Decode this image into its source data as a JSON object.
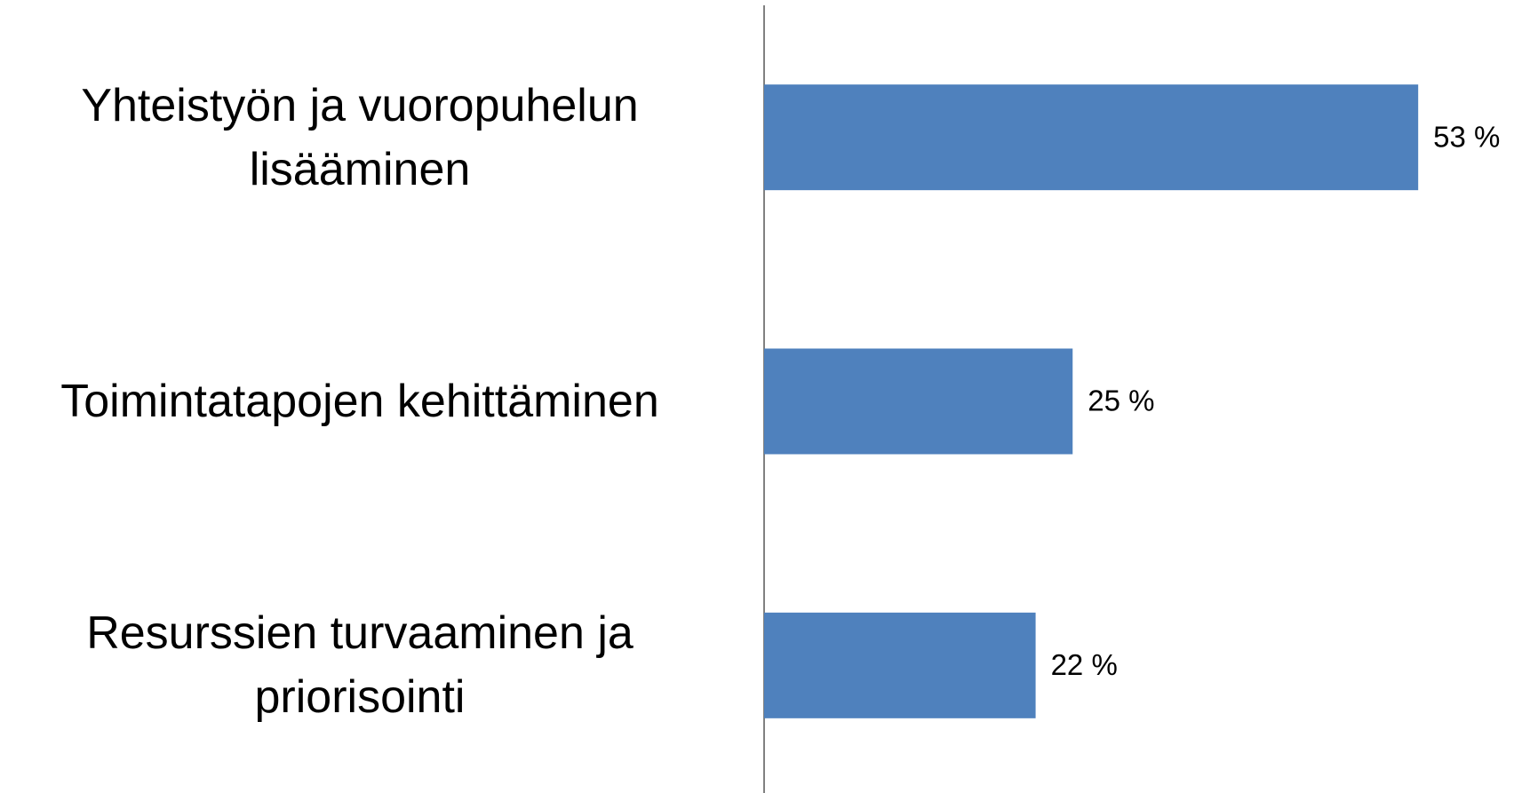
{
  "chart_data": {
    "type": "bar",
    "orientation": "horizontal",
    "categories": [
      "Yhteistyön ja vuoropuhelun lisääminen",
      "Toimintatapojen kehittäminen",
      "Resurssien turvaaminen ja priorisointi"
    ],
    "values": [
      53,
      25,
      22
    ],
    "value_labels": [
      "53 %",
      "25 %",
      "22 %"
    ],
    "color": "#4f81bd"
  }
}
